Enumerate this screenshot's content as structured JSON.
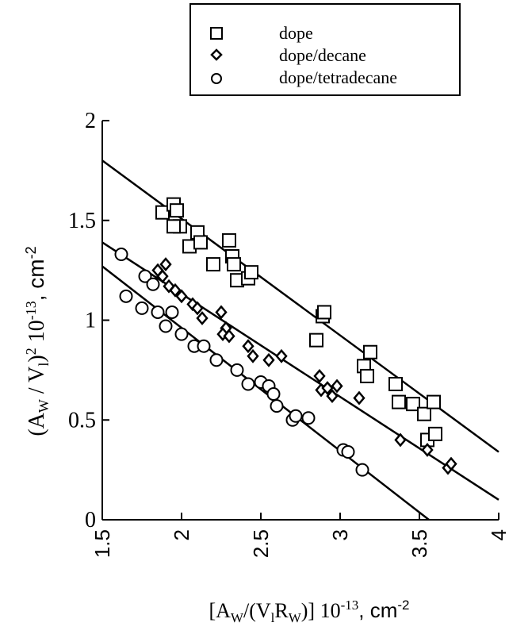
{
  "chart_data": {
    "type": "scatter",
    "xlabel": "[A_W/(V_l R_W)] 10^-13 , cm^-2",
    "ylabel": "(A_W / V_l)^2 10^-13 , cm^-2",
    "xlim": [
      1.5,
      4
    ],
    "ylim": [
      0,
      2
    ],
    "x_ticks": [
      "1.5",
      "2",
      "2.5",
      "3",
      "3.5",
      "4"
    ],
    "y_ticks": [
      "0",
      "0.5",
      "1",
      "1.5",
      "2"
    ],
    "grid": false,
    "legend_position": "top-right",
    "series": [
      {
        "name": "dope",
        "marker": "square",
        "points": [
          [
            1.88,
            1.54
          ],
          [
            1.95,
            1.58
          ],
          [
            1.97,
            1.55
          ],
          [
            1.99,
            1.47
          ],
          [
            1.95,
            1.47
          ],
          [
            2.05,
            1.37
          ],
          [
            2.1,
            1.44
          ],
          [
            2.12,
            1.39
          ],
          [
            2.2,
            1.28
          ],
          [
            2.3,
            1.4
          ],
          [
            2.32,
            1.32
          ],
          [
            2.33,
            1.28
          ],
          [
            2.35,
            1.2
          ],
          [
            2.42,
            1.21
          ],
          [
            2.44,
            1.24
          ],
          [
            2.85,
            0.9
          ],
          [
            2.89,
            1.02
          ],
          [
            2.9,
            1.04
          ],
          [
            3.15,
            0.77
          ],
          [
            3.17,
            0.72
          ],
          [
            3.19,
            0.84
          ],
          [
            3.35,
            0.68
          ],
          [
            3.37,
            0.59
          ],
          [
            3.46,
            0.58
          ],
          [
            3.53,
            0.53
          ],
          [
            3.55,
            0.4
          ],
          [
            3.59,
            0.59
          ],
          [
            3.6,
            0.43
          ]
        ],
        "fit": [
          [
            1.5,
            1.8
          ],
          [
            4.0,
            0.34
          ]
        ]
      },
      {
        "name": "dope/decane",
        "marker": "diamond",
        "points": [
          [
            1.85,
            1.25
          ],
          [
            1.9,
            1.28
          ],
          [
            1.88,
            1.22
          ],
          [
            1.92,
            1.17
          ],
          [
            1.96,
            1.15
          ],
          [
            2.0,
            1.12
          ],
          [
            2.07,
            1.08
          ],
          [
            2.1,
            1.06
          ],
          [
            2.13,
            1.01
          ],
          [
            2.25,
            1.04
          ],
          [
            2.28,
            0.96
          ],
          [
            2.26,
            0.93
          ],
          [
            2.3,
            0.92
          ],
          [
            2.42,
            0.87
          ],
          [
            2.45,
            0.82
          ],
          [
            2.55,
            0.8
          ],
          [
            2.63,
            0.82
          ],
          [
            2.87,
            0.72
          ],
          [
            2.88,
            0.65
          ],
          [
            2.92,
            0.66
          ],
          [
            2.95,
            0.62
          ],
          [
            2.98,
            0.67
          ],
          [
            3.12,
            0.61
          ],
          [
            3.38,
            0.4
          ],
          [
            3.55,
            0.35
          ],
          [
            3.68,
            0.26
          ],
          [
            3.7,
            0.28
          ]
        ],
        "fit": [
          [
            1.5,
            1.39
          ],
          [
            4.0,
            0.1
          ]
        ]
      },
      {
        "name": "dope/tetradecane",
        "marker": "circle",
        "points": [
          [
            1.62,
            1.33
          ],
          [
            1.65,
            1.12
          ],
          [
            1.75,
            1.06
          ],
          [
            1.77,
            1.22
          ],
          [
            1.82,
            1.18
          ],
          [
            1.85,
            1.04
          ],
          [
            1.9,
            0.97
          ],
          [
            1.94,
            1.04
          ],
          [
            2.0,
            0.93
          ],
          [
            2.08,
            0.87
          ],
          [
            2.14,
            0.87
          ],
          [
            2.22,
            0.8
          ],
          [
            2.35,
            0.75
          ],
          [
            2.42,
            0.68
          ],
          [
            2.5,
            0.69
          ],
          [
            2.55,
            0.67
          ],
          [
            2.58,
            0.63
          ],
          [
            2.6,
            0.57
          ],
          [
            2.7,
            0.5
          ],
          [
            2.72,
            0.52
          ],
          [
            2.8,
            0.51
          ],
          [
            3.02,
            0.35
          ],
          [
            3.05,
            0.34
          ],
          [
            3.14,
            0.25
          ]
        ],
        "fit": [
          [
            1.5,
            1.27
          ],
          [
            3.56,
            0.0
          ]
        ]
      }
    ]
  }
}
